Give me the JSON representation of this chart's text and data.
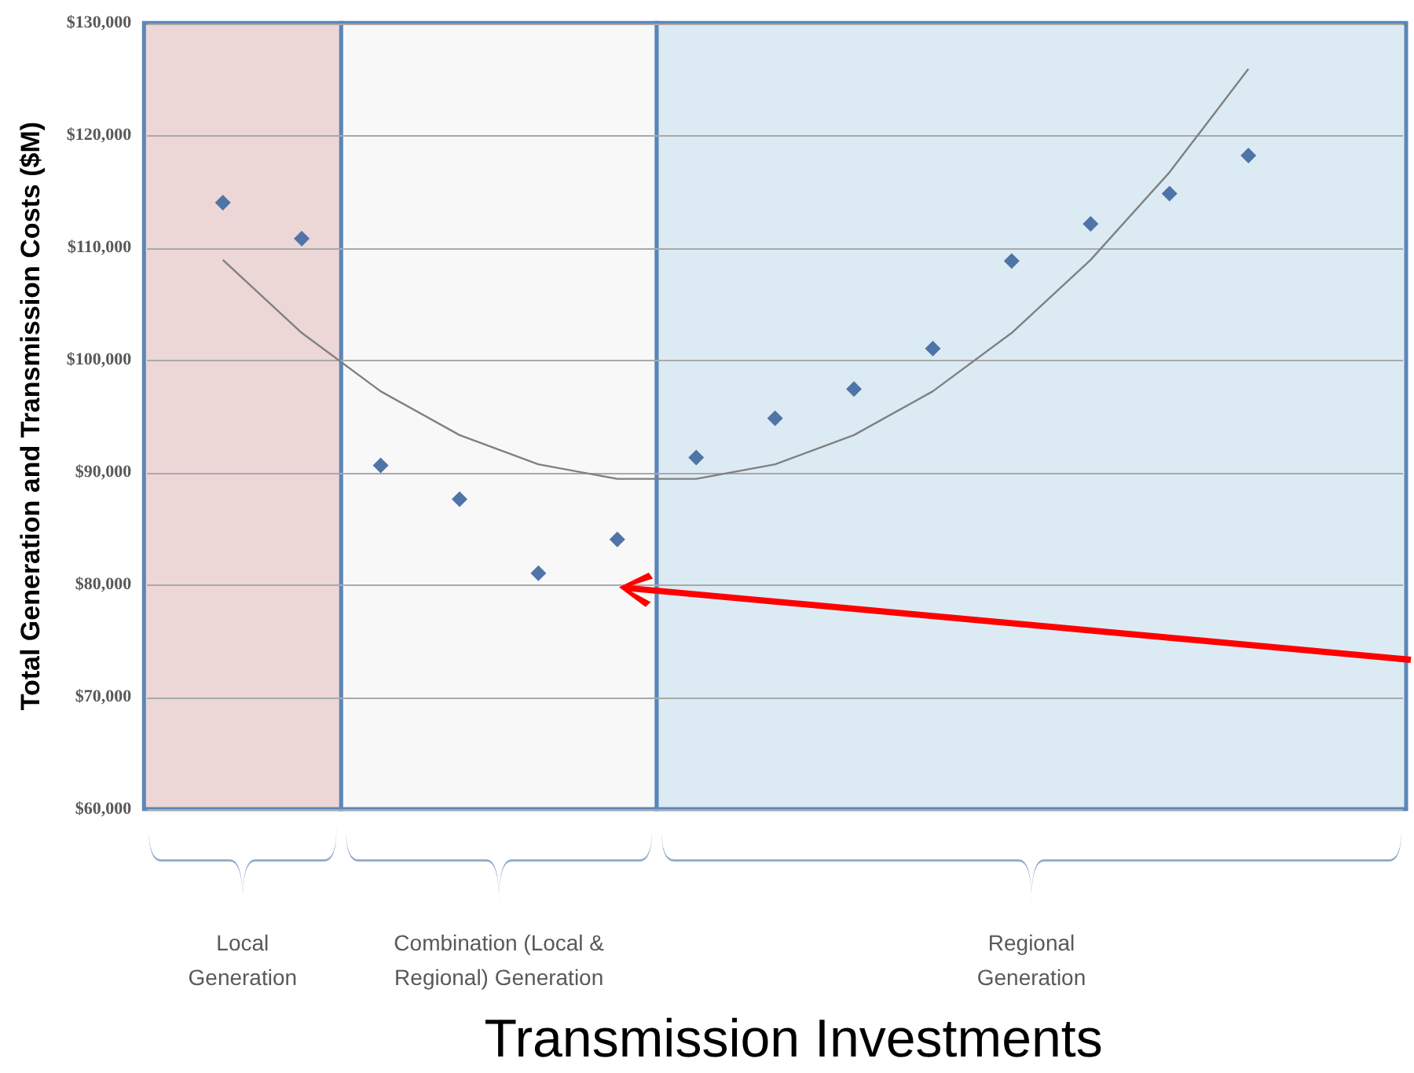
{
  "chart_data": {
    "type": "scatter",
    "ylabel": "Total Generation and Transmission Costs ($M)",
    "xlabel": "Transmission Investments",
    "categories": [
      null,
      null,
      null,
      null,
      null,
      null,
      null,
      null,
      null,
      null,
      null,
      null,
      null,
      null
    ],
    "series": [
      {
        "color": "#4f74a8",
        "marker": "diamond",
        "values": [
          114000,
          110800,
          90600,
          87600,
          81000,
          84000,
          91300,
          94800,
          97400,
          101000,
          108800,
          112100,
          114800,
          118200
        ]
      },
      {
        "type": "line",
        "color": "#808080",
        "marker": "none",
        "line_style": "solid",
        "values": [
          108900,
          102400,
          97200,
          93300,
          90700,
          89400,
          89400,
          90700,
          93300,
          97200,
          102400,
          108900,
          116700,
          125900
        ]
      }
    ],
    "ylim": [
      60000,
      130000
    ],
    "yticks": [
      {
        "value": 60000,
        "label": "$60,000"
      },
      {
        "value": 70000,
        "label": "$70,000"
      },
      {
        "value": 80000,
        "label": "$80,000"
      },
      {
        "value": 90000,
        "label": "$90,000"
      },
      {
        "value": 100000,
        "label": "$100,000"
      },
      {
        "value": 110000,
        "label": "$110,000"
      },
      {
        "value": 120000,
        "label": "$120,000"
      },
      {
        "value": 130000,
        "label": "$130,000"
      }
    ],
    "tick_labels": "y",
    "grid": "y",
    "legend": false,
    "annotations": [
      "Local Generation",
      "Combination (Local & Regional) Generation",
      "Regional Generation"
    ]
  }
}
